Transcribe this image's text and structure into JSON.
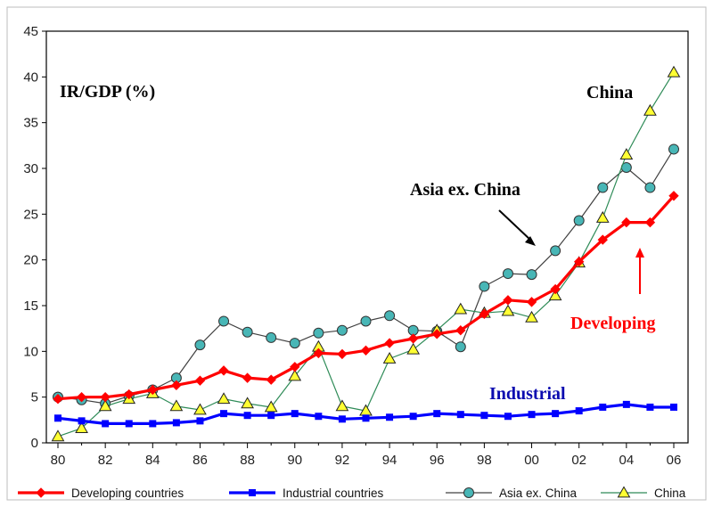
{
  "chart_data": {
    "type": "line",
    "y_axis_title": "IR/GDP (%)",
    "ylim": [
      0,
      45
    ],
    "y_ticks": [
      0,
      5,
      10,
      15,
      20,
      25,
      30,
      35,
      40,
      45
    ],
    "x_years": [
      1980,
      1981,
      1982,
      1983,
      1984,
      1985,
      1986,
      1987,
      1988,
      1989,
      1990,
      1991,
      1992,
      1993,
      1994,
      1995,
      1996,
      1997,
      1998,
      1999,
      2000,
      2001,
      2002,
      2003,
      2004,
      2005,
      2006
    ],
    "x_tick_labels": [
      "80",
      "82",
      "84",
      "86",
      "88",
      "90",
      "92",
      "94",
      "96",
      "98",
      "00",
      "02",
      "04",
      "06"
    ],
    "grid": false,
    "legend_position": "bottom",
    "series": [
      {
        "name": "Developing countries",
        "color": "#ff0000",
        "marker": "diamond",
        "values": [
          4.8,
          5.0,
          5.0,
          5.3,
          5.8,
          6.3,
          6.8,
          7.9,
          7.1,
          6.9,
          8.3,
          9.8,
          9.7,
          10.1,
          10.9,
          11.4,
          11.9,
          12.3,
          14.1,
          15.6,
          15.4,
          16.8,
          19.8,
          22.2,
          24.1,
          24.1,
          27.0
        ]
      },
      {
        "name": "Industrial countries",
        "color": "#0000ff",
        "marker": "square",
        "values": [
          2.7,
          2.4,
          2.1,
          2.1,
          2.1,
          2.2,
          2.4,
          3.2,
          3.0,
          3.0,
          3.2,
          2.9,
          2.6,
          2.7,
          2.8,
          2.9,
          3.2,
          3.1,
          3.0,
          2.9,
          3.1,
          3.2,
          3.5,
          3.9,
          4.2,
          3.9,
          3.9
        ]
      },
      {
        "name": "Asia ex. China",
        "color": "#404040",
        "marker": "circle",
        "values": [
          5.0,
          4.7,
          4.3,
          5.1,
          5.8,
          7.1,
          10.7,
          13.3,
          12.1,
          11.5,
          10.9,
          12.0,
          12.3,
          13.3,
          13.9,
          12.3,
          12.2,
          10.5,
          17.1,
          18.5,
          18.4,
          21.0,
          24.3,
          27.9,
          30.1,
          27.9,
          32.1
        ]
      },
      {
        "name": "China",
        "color": "#2e8b57",
        "marker": "triangle",
        "values": [
          0.7,
          1.6,
          4.0,
          4.8,
          5.4,
          4.0,
          3.6,
          4.8,
          4.3,
          3.9,
          7.3,
          10.5,
          4.0,
          3.5,
          9.2,
          10.2,
          12.3,
          14.6,
          14.2,
          14.4,
          13.7,
          16.1,
          19.7,
          24.6,
          31.5,
          36.3,
          40.5
        ]
      }
    ],
    "annotations": {
      "china": "China",
      "asia_ex_china": "Asia ex. China",
      "developing": "Developing",
      "industrial": "Industrial"
    }
  }
}
